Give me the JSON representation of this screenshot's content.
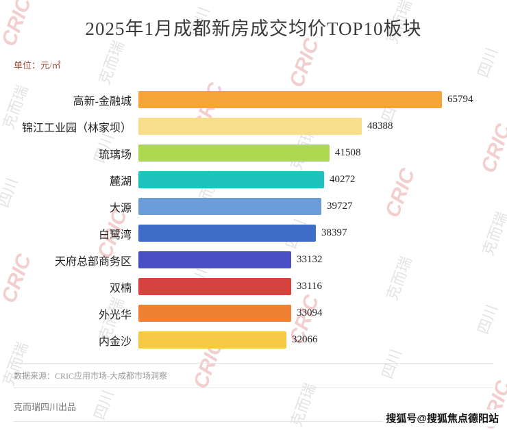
{
  "title": "2025年1月成都新房成交均价TOP10板块",
  "unit_label": "单位：元/㎡",
  "footer": {
    "source": "数据来源：CRIC应用市场-大成都市场洞察",
    "producer": "克而瑞四川出品",
    "sohu": "搜狐号@搜狐焦点德阳站"
  },
  "watermarks": {
    "texts": [
      "CRIC",
      "克而瑞",
      "四川"
    ]
  },
  "chart_data": {
    "type": "bar",
    "orientation": "horizontal",
    "title": "2025年1月成都新房成交均价TOP10板块",
    "unit": "元/㎡",
    "categories": [
      "高新-金融城",
      "锦江工业园（林家坝）",
      "琉璃场",
      "麓湖",
      "大源",
      "白鹭湾",
      "天府总部商务区",
      "双楠",
      "外光华",
      "内金沙"
    ],
    "values": [
      65794,
      48388,
      41508,
      40272,
      39727,
      38397,
      33132,
      33116,
      33094,
      32066
    ],
    "xlim": [
      0,
      68000
    ],
    "grid": false,
    "legend": "none",
    "bar_colors": [
      "#F5A438",
      "#F8DE8B",
      "#ACD94F",
      "#1EC3BC",
      "#6B9ED9",
      "#3E6EC8",
      "#4A4EC4",
      "#D6423E",
      "#EF8034",
      "#F6C844"
    ]
  }
}
